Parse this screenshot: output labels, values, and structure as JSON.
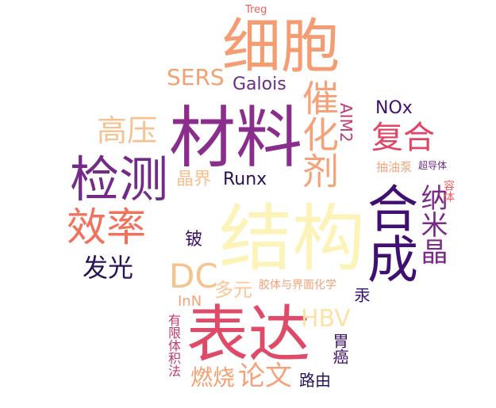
{
  "words": [
    {
      "text": "Treg",
      "color": "#f05b5f"
    },
    {
      "text": "细胞",
      "color": "#f69c73"
    },
    {
      "text": "SERS",
      "color": "#f6a071"
    },
    {
      "text": "Galois",
      "color": "#6c2b87"
    },
    {
      "text": "催化剂",
      "color": "#f4a27a"
    },
    {
      "text": "材料",
      "color": "#8b2d8c"
    },
    {
      "text": "高压",
      "color": "#f7c292"
    },
    {
      "text": "NOx",
      "color": "#40116e"
    },
    {
      "text": "AIM2",
      "color": "#c23a74"
    },
    {
      "text": "复合",
      "color": "#e04467"
    },
    {
      "text": "检测",
      "color": "#742b87"
    },
    {
      "text": "抽油泵",
      "color": "#f3a67c"
    },
    {
      "text": "超导体",
      "color": "#6c2b87"
    },
    {
      "text": "晶界",
      "color": "#f7bf8c"
    },
    {
      "text": "Runx",
      "color": "#2a1055"
    },
    {
      "text": "效率",
      "color": "#f0715c"
    },
    {
      "text": "合成",
      "color": "#3f0f72"
    },
    {
      "text": "纳米晶",
      "color": "#7b2a89"
    },
    {
      "text": "容体",
      "color": "#f05b5f"
    },
    {
      "text": "结构",
      "color": "#fbf3b8"
    },
    {
      "text": "铍",
      "color": "#3a0f6c"
    },
    {
      "text": "发光",
      "color": "#2b1358"
    },
    {
      "text": "DC",
      "color": "#f6c28e"
    },
    {
      "text": "多元",
      "color": "#f7c798"
    },
    {
      "text": "胶体与界面化学",
      "color": "#f4a27a"
    },
    {
      "text": "InN",
      "color": "#f3a27a"
    },
    {
      "text": "表达",
      "color": "#df4a68"
    },
    {
      "text": "HBV",
      "color": "#fbe3a7"
    },
    {
      "text": "汞",
      "color": "#3a0f6c"
    },
    {
      "text": "有限体积法",
      "color": "#c23a74"
    },
    {
      "text": "胃癌",
      "color": "#3a0f6c"
    },
    {
      "text": "燃烧",
      "color": "#f6a071"
    },
    {
      "text": "论文",
      "color": "#f4a27a"
    },
    {
      "text": "路由",
      "color": "#2b1358"
    }
  ]
}
